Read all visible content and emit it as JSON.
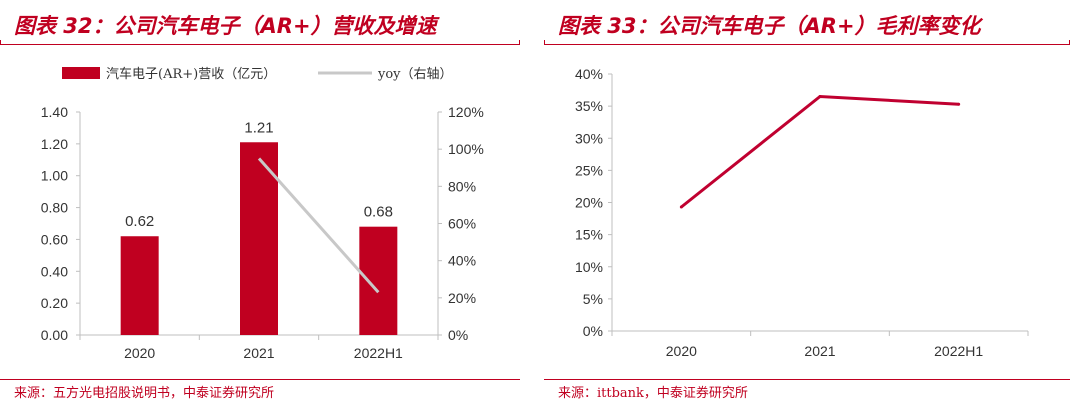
{
  "colors": {
    "accent": "#c00020",
    "bar": "#c00020",
    "yoy_line": "#c8c8c8",
    "margin_line": "#c00030",
    "axis": "#bfbfbf",
    "text": "#333333"
  },
  "chart_data": [
    {
      "type": "bar",
      "title": "图表 32：公司汽车电子（AR+）营收及增速",
      "source": "来源：五方光电招股说明书，中泰证券研究所",
      "categories": [
        "2020",
        "2021",
        "2022H1"
      ],
      "series": [
        {
          "name": "汽车电子(AR+)营收（亿元）",
          "type": "bar",
          "axis": "left",
          "values": [
            0.62,
            1.21,
            0.68
          ],
          "data_labels": [
            "0.62",
            "1.21",
            "0.68"
          ]
        },
        {
          "name": "yoy（右轴）",
          "type": "line",
          "axis": "right",
          "values": [
            null,
            95,
            23
          ]
        }
      ],
      "ylim": [
        0,
        1.4
      ],
      "yticks": [
        "0.00",
        "0.20",
        "0.40",
        "0.60",
        "0.80",
        "1.00",
        "1.20",
        "1.40"
      ],
      "y2lim": [
        0,
        120
      ],
      "y2ticks": [
        "0%",
        "20%",
        "40%",
        "60%",
        "80%",
        "100%",
        "120%"
      ],
      "legend_position": "top",
      "grid": false
    },
    {
      "type": "line",
      "title": "图表 33：公司汽车电子（AR+）毛利率变化",
      "source": "来源：ittbank，中泰证券研究所",
      "categories": [
        "2020",
        "2021",
        "2022H1"
      ],
      "series": [
        {
          "name": "毛利率",
          "values": [
            19.3,
            36.5,
            35.3
          ]
        }
      ],
      "ylim": [
        0,
        40
      ],
      "yticks": [
        "0%",
        "5%",
        "10%",
        "15%",
        "20%",
        "25%",
        "30%",
        "35%",
        "40%"
      ],
      "grid": false
    }
  ]
}
